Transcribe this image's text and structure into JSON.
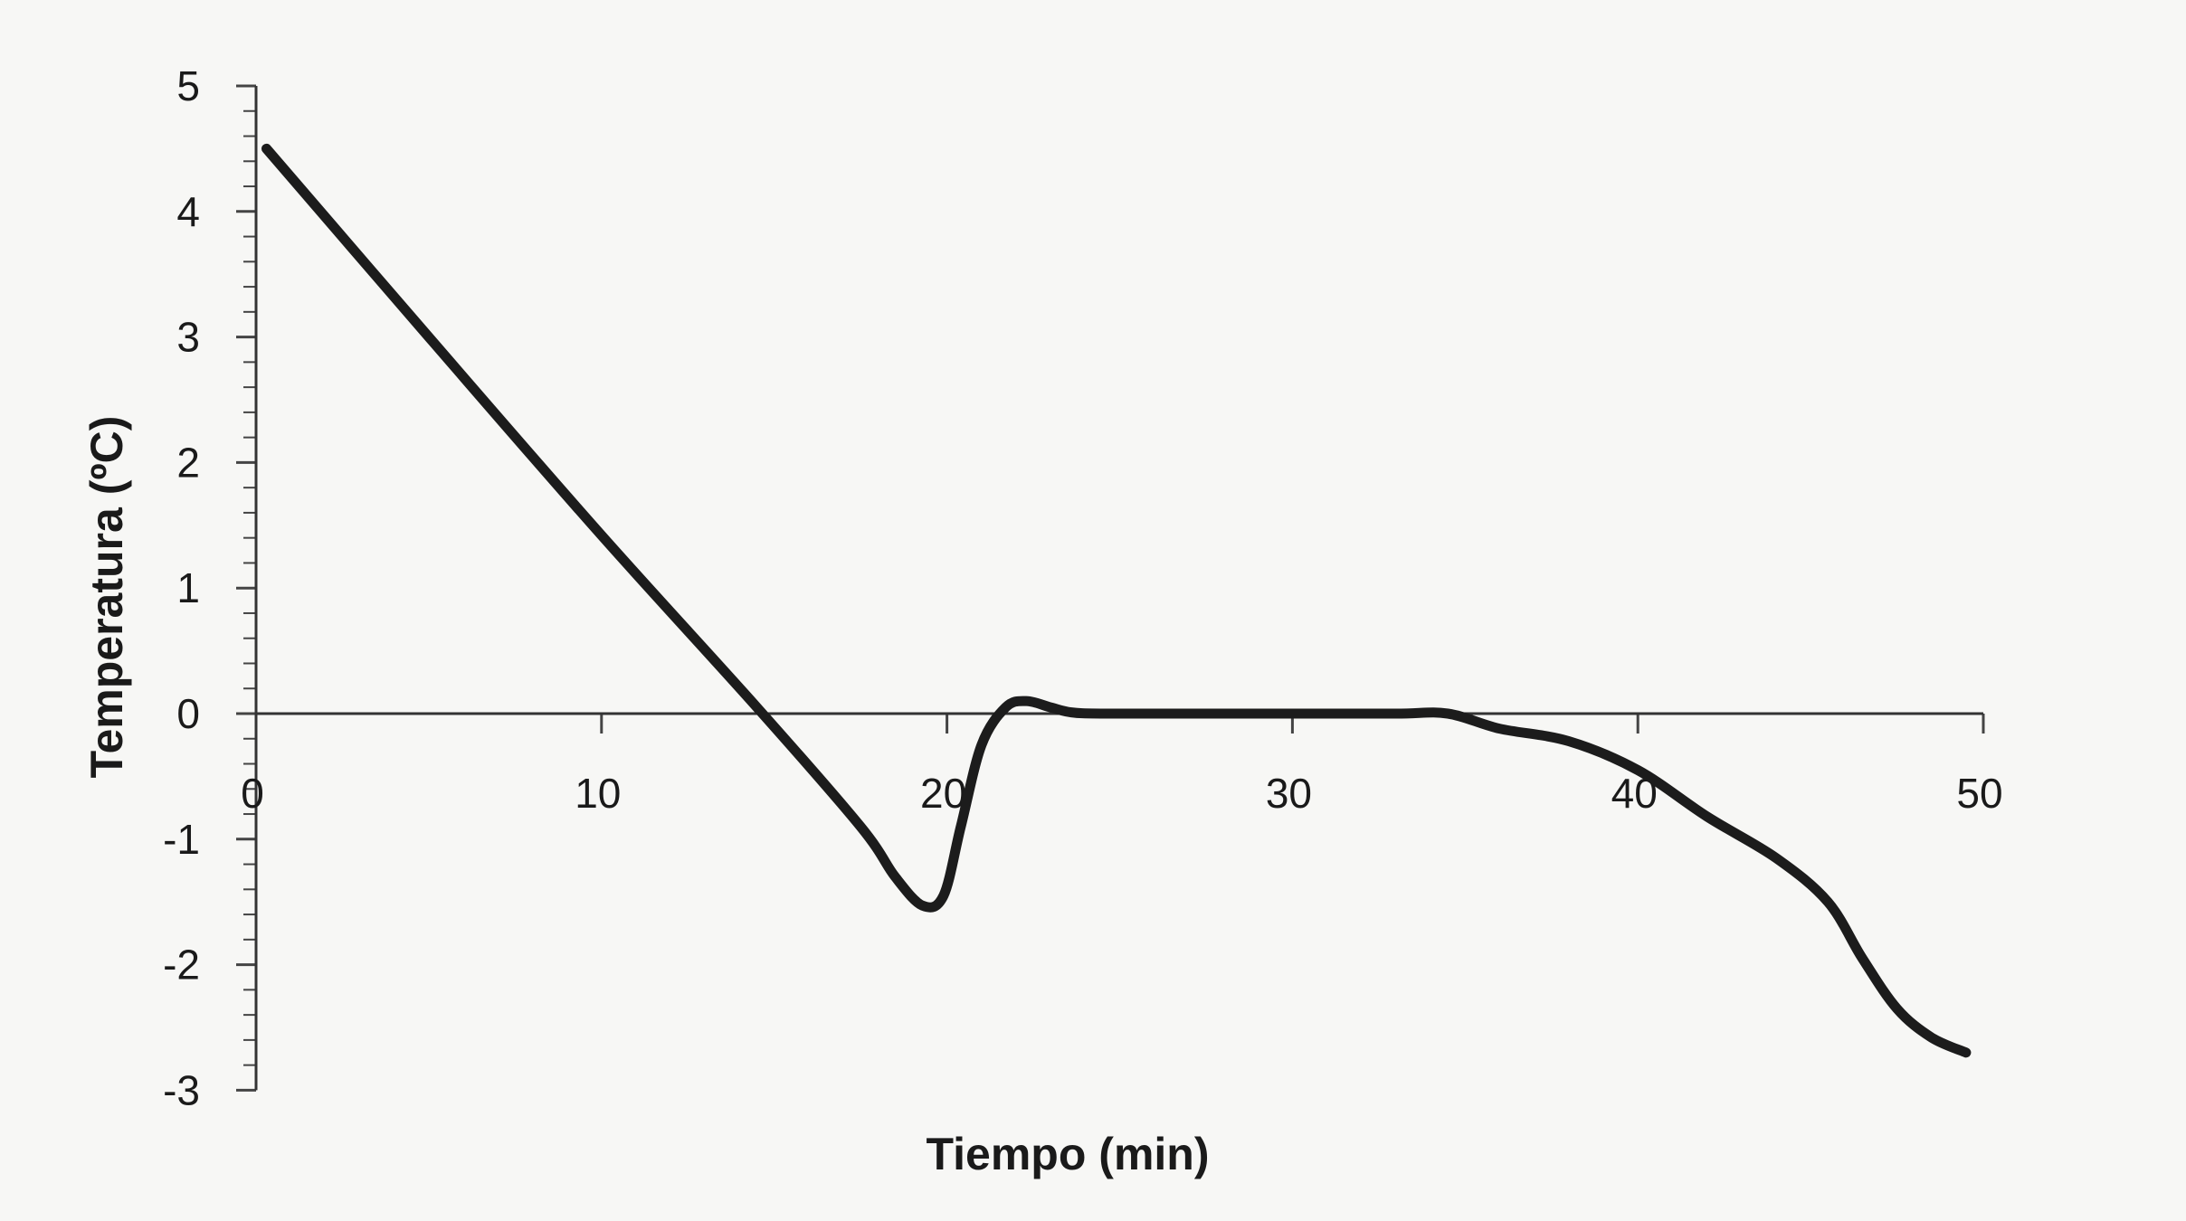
{
  "chart_data": {
    "type": "line",
    "title": "",
    "xlabel": "Tiempo (min)",
    "ylabel": "Temperatura (ºC)",
    "xlim": [
      0,
      50
    ],
    "ylim": [
      -3,
      5
    ],
    "x_ticks": [
      0,
      10,
      20,
      30,
      40,
      50
    ],
    "y_ticks": [
      5,
      4,
      3,
      2,
      1,
      0,
      -1,
      -2,
      -3
    ],
    "x_tick_labels": [
      "0",
      "10",
      "20",
      "30",
      "40",
      "50"
    ],
    "y_tick_labels": [
      "5",
      "4",
      "3",
      "2",
      "1",
      "0",
      "-1",
      "-2",
      "-3"
    ],
    "grid": false,
    "legend": "none",
    "line_color": "#1c1c1c",
    "series": [
      {
        "x": [
          0.3,
          5,
          10,
          14.5,
          17.5,
          18.5,
          19.3,
          19.9,
          20.4,
          21.0,
          21.7,
          22.3,
          23.0,
          23.6,
          24.5,
          27,
          30,
          33,
          34.5,
          36,
          38,
          40,
          42,
          44,
          45.5,
          46.5,
          47.5,
          48.5,
          49.5
        ],
        "values": [
          4.5,
          3.0,
          1.42,
          0.05,
          -0.9,
          -1.3,
          -1.53,
          -1.45,
          -0.9,
          -0.25,
          0.05,
          0.1,
          0.05,
          0.01,
          0.0,
          0.0,
          0.0,
          0.0,
          0.0,
          -0.12,
          -0.22,
          -0.45,
          -0.82,
          -1.15,
          -1.5,
          -1.95,
          -2.35,
          -2.58,
          -2.7
        ]
      }
    ]
  }
}
